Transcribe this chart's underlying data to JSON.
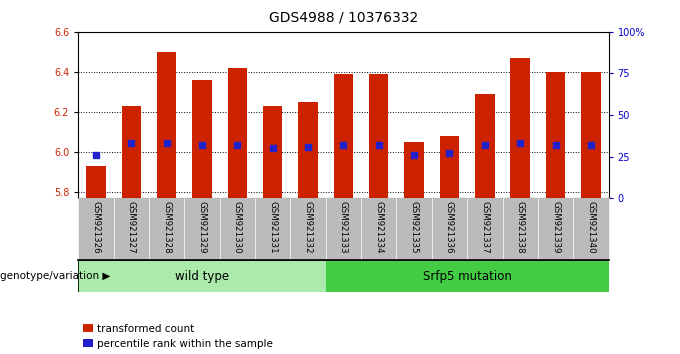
{
  "title": "GDS4988 / 10376332",
  "samples": [
    "GSM921326",
    "GSM921327",
    "GSM921328",
    "GSM921329",
    "GSM921330",
    "GSM921331",
    "GSM921332",
    "GSM921333",
    "GSM921334",
    "GSM921335",
    "GSM921336",
    "GSM921337",
    "GSM921338",
    "GSM921339",
    "GSM921340"
  ],
  "transformed_count": [
    5.93,
    6.23,
    6.5,
    6.36,
    6.42,
    6.23,
    6.25,
    6.39,
    6.39,
    6.05,
    6.08,
    6.29,
    6.47,
    6.4,
    6.4
  ],
  "percentile_rank": [
    26,
    33,
    33,
    32,
    32,
    30,
    31,
    32,
    32,
    26,
    27,
    32,
    33,
    32,
    32
  ],
  "ylim_left": [
    5.77,
    6.6
  ],
  "ylim_right": [
    0,
    100
  ],
  "yticks_left": [
    5.8,
    6.0,
    6.2,
    6.4,
    6.6
  ],
  "yticks_right": [
    0,
    25,
    50,
    75,
    100
  ],
  "ytick_right_labels": [
    "0",
    "25",
    "50",
    "75",
    "100%"
  ],
  "wild_type_count": 7,
  "mutation_label": "Srfp5 mutation",
  "wildtype_label": "wild type",
  "genotype_label": "genotype/variation",
  "legend_red": "transformed count",
  "legend_blue": "percentile rank within the sample",
  "bar_color": "#cc2200",
  "blue_color": "#2222cc",
  "bar_bottom": 5.77,
  "bar_width": 0.55,
  "bg_color": "#ffffff",
  "tick_bg": "#bbbbbb",
  "wt_bg": "#aaeaaa",
  "mut_bg": "#44cc44",
  "xlabel_color": "#cc2200",
  "ylabel_right_color": "#0000cc",
  "title_fontsize": 10,
  "tick_fontsize": 7,
  "label_fontsize": 8.5
}
